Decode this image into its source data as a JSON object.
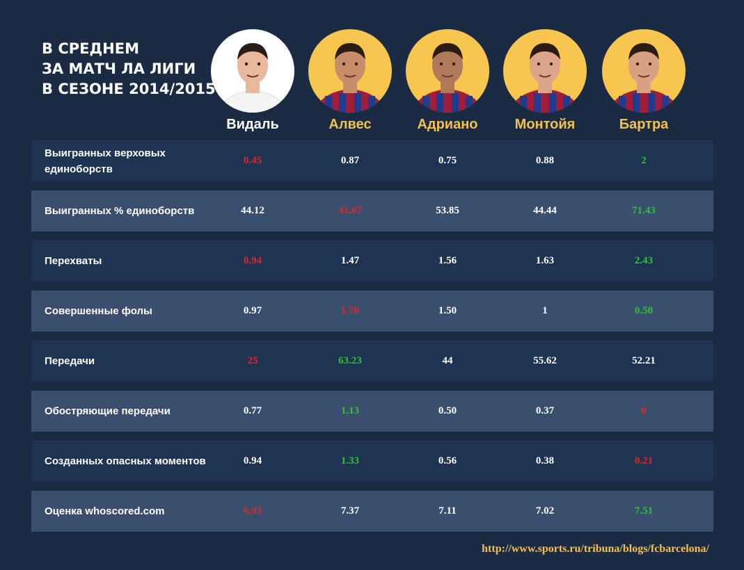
{
  "title": {
    "line1": "В СРЕДНЕМ",
    "line2": "ЗА МАТЧ ЛА ЛИГИ",
    "line3": "В СЕЗОНЕ 2014/2015"
  },
  "colors": {
    "background": "#1b2b44",
    "row_dark": "#1f3352",
    "row_light": "#3a4f6d",
    "accent_gold": "#f2c14e",
    "worst_red": "#e0262a",
    "best_green": "#2fc236"
  },
  "players": [
    {
      "name": "Видаль",
      "avatar": "player-photo-icon"
    },
    {
      "name": "Алвес",
      "avatar": "player-photo-icon"
    },
    {
      "name": "Адриано",
      "avatar": "player-photo-icon"
    },
    {
      "name": "Монтойя",
      "avatar": "player-photo-icon"
    },
    {
      "name": "Бартра",
      "avatar": "player-photo-icon"
    }
  ],
  "rows": [
    {
      "label": "Выигранных верховых единоборств",
      "values": [
        {
          "v": "0.45",
          "status": "red"
        },
        {
          "v": "0.87",
          "status": ""
        },
        {
          "v": "0.75",
          "status": ""
        },
        {
          "v": "0.88",
          "status": ""
        },
        {
          "v": "2",
          "status": "green"
        }
      ]
    },
    {
      "label": "Выигранных % единоборств",
      "values": [
        {
          "v": "44.12",
          "status": ""
        },
        {
          "v": "41.07",
          "status": "red"
        },
        {
          "v": "53.85",
          "status": ""
        },
        {
          "v": "44.44",
          "status": ""
        },
        {
          "v": "71.43",
          "status": "green"
        }
      ]
    },
    {
      "label": "Перехваты",
      "values": [
        {
          "v": "0.94",
          "status": "red"
        },
        {
          "v": "1.47",
          "status": ""
        },
        {
          "v": "1.56",
          "status": ""
        },
        {
          "v": "1.63",
          "status": ""
        },
        {
          "v": "2.43",
          "status": "green"
        }
      ]
    },
    {
      "label": "Совершенные фолы",
      "values": [
        {
          "v": "0.97",
          "status": ""
        },
        {
          "v": "1.70",
          "status": "red"
        },
        {
          "v": "1.50",
          "status": ""
        },
        {
          "v": "1",
          "status": ""
        },
        {
          "v": "0.50",
          "status": "green"
        }
      ]
    },
    {
      "label": "Передачи",
      "values": [
        {
          "v": "25",
          "status": "red"
        },
        {
          "v": "63.23",
          "status": "green"
        },
        {
          "v": "44",
          "status": ""
        },
        {
          "v": "55.62",
          "status": ""
        },
        {
          "v": "52.21",
          "status": ""
        }
      ]
    },
    {
      "label": "Обостряющие передачи",
      "values": [
        {
          "v": "0.77",
          "status": ""
        },
        {
          "v": "1.13",
          "status": "green"
        },
        {
          "v": "0.50",
          "status": ""
        },
        {
          "v": "0.37",
          "status": ""
        },
        {
          "v": "0",
          "status": "red"
        }
      ]
    },
    {
      "label": "Созданных опасных моментов",
      "values": [
        {
          "v": "0.94",
          "status": ""
        },
        {
          "v": "1.33",
          "status": "green"
        },
        {
          "v": "0.56",
          "status": ""
        },
        {
          "v": "0.38",
          "status": ""
        },
        {
          "v": "0.21",
          "status": "red"
        }
      ]
    },
    {
      "label": "Оценка whoscored.com",
      "values": [
        {
          "v": "6.93",
          "status": "red"
        },
        {
          "v": "7.37",
          "status": ""
        },
        {
          "v": "7.11",
          "status": ""
        },
        {
          "v": "7.02",
          "status": ""
        },
        {
          "v": "7.51",
          "status": "green"
        }
      ]
    }
  ],
  "source": "http://www.sports.ru/tribuna/blogs/fcbarcelona/"
}
